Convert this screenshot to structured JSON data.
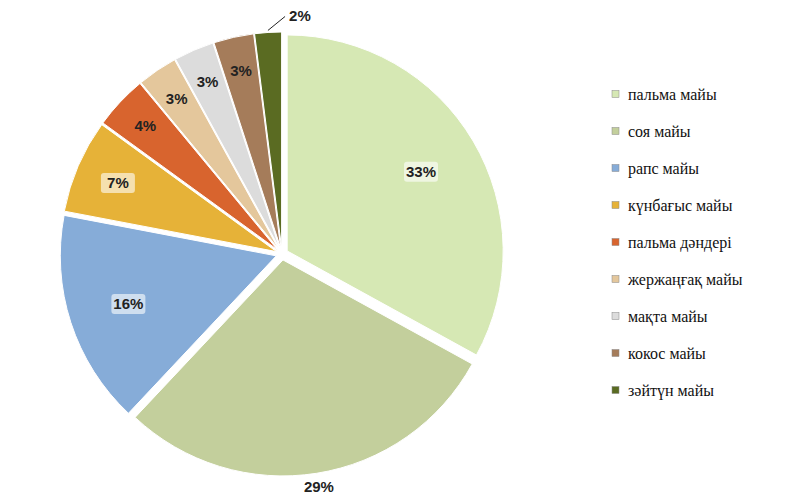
{
  "chart_data": {
    "type": "pie",
    "categories": [
      "пальма майы",
      "соя майы",
      "рапс майы",
      "күнбағыс майы",
      "пальма дәндері",
      "жержаңғақ майы",
      "мақта майы",
      "кокос майы",
      "зәйтүн майы"
    ],
    "values": [
      33,
      29,
      16,
      7,
      4,
      3,
      3,
      3,
      2
    ],
    "value_labels": [
      "33%",
      "29%",
      "16%",
      "7%",
      "4%",
      "3%",
      "3%",
      "3%",
      "2%"
    ],
    "colors": [
      "#d6e8b4",
      "#c3cf9c",
      "#86acd8",
      "#e6b238",
      "#d8642e",
      "#e4c79c",
      "#dcdcdc",
      "#a57c5a",
      "#5a6b22"
    ],
    "data_labels": true,
    "legend": "right"
  }
}
